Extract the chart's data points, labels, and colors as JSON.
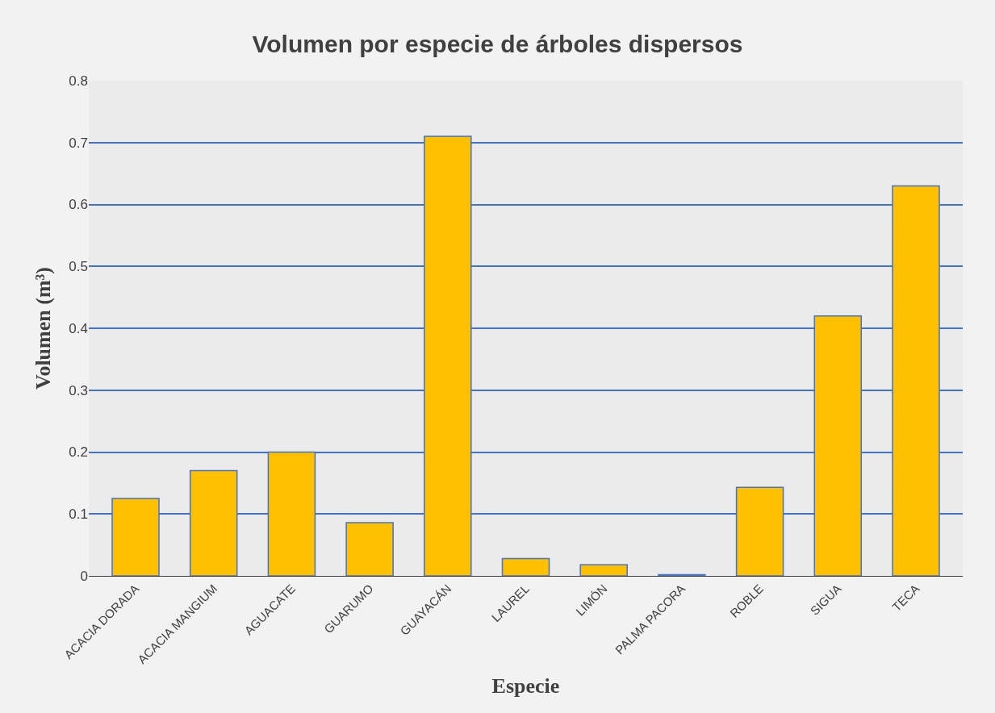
{
  "chart_data": {
    "type": "bar",
    "title": "Volumen por especie de árboles dispersos",
    "xlabel": "Especie",
    "ylabel": "Volumen (m³)",
    "categories": [
      "ACACIA DORADA",
      "ACACIA MANGIUM",
      "AGUACATE",
      "GUARUMO",
      "GUAYACÁN",
      "LAUREL",
      "LIMÓN",
      "PALMA PACORA",
      "ROBLE",
      "SIGUA",
      "TECA"
    ],
    "values": [
      0.125,
      0.17,
      0.2,
      0.086,
      0.71,
      0.028,
      0.018,
      0.002,
      0.143,
      0.42,
      0.63
    ],
    "color": "#ffc000",
    "ylim": [
      0,
      0.8
    ],
    "yticks": [
      0,
      0.1,
      0.2,
      0.3,
      0.4,
      0.5,
      0.6,
      0.7,
      0.8
    ],
    "grid": "y"
  }
}
